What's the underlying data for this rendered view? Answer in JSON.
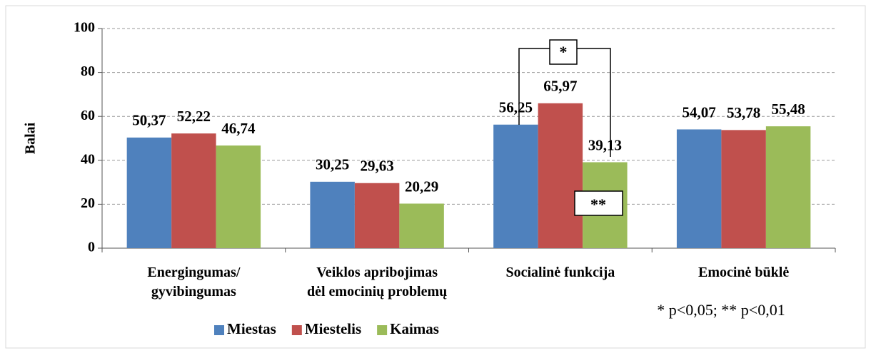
{
  "chart_data": {
    "type": "bar",
    "y_label": "Balai",
    "categories": [
      [
        "Energingumas/",
        "gyvibingumas"
      ],
      [
        "Veiklos apribojimas",
        "dėl emocinių problemų"
      ],
      [
        "Socialinė funkcija"
      ],
      [
        "Emocinė būklė"
      ]
    ],
    "series": [
      {
        "name": "Miestas",
        "color": "#4f81bd",
        "values": [
          50.37,
          30.25,
          56.25,
          54.07
        ],
        "value_labels": [
          "50,37",
          "30,25",
          "56,25",
          "54,07"
        ]
      },
      {
        "name": "Miestelis",
        "color": "#c0504d",
        "values": [
          52.22,
          29.63,
          65.97,
          53.78
        ],
        "value_labels": [
          "52,22",
          "29,63",
          "65,97",
          "53,78"
        ]
      },
      {
        "name": "Kaimas",
        "color": "#9bbb59",
        "values": [
          46.74,
          20.29,
          39.13,
          55.48
        ],
        "value_labels": [
          "46,74",
          "20,29",
          "39,13",
          "55,48"
        ]
      }
    ],
    "ylim": [
      0,
      100
    ],
    "yticks": [
      0,
      20,
      40,
      60,
      80,
      100
    ],
    "grid": true,
    "annotations": [
      "*",
      "**",
      "* p<0,05; ** p<0,01"
    ]
  }
}
